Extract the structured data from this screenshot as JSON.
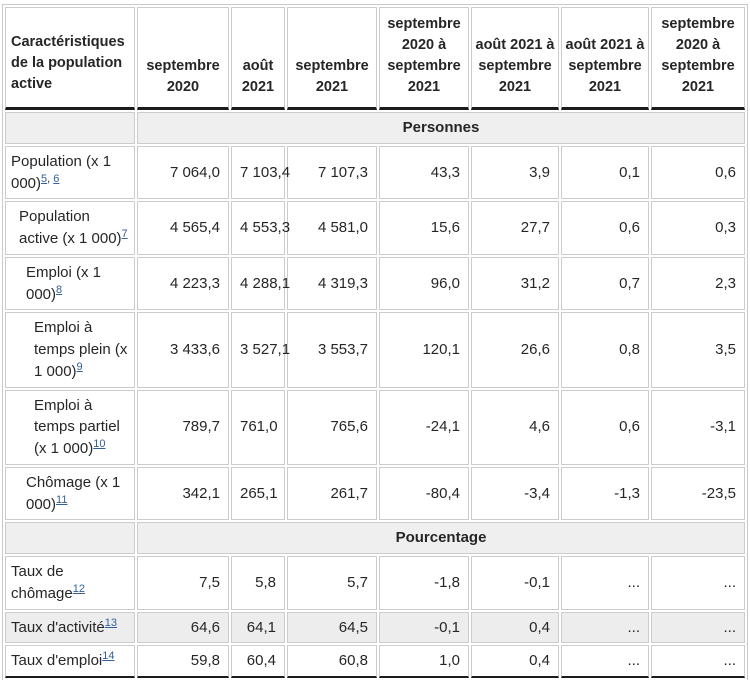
{
  "table": {
    "header": {
      "label_col": "Caractéristiques de la population active",
      "columns": [
        "septembre 2020",
        "août 2021",
        "septembre 2021",
        "septembre 2020 à septembre 2021",
        "août 2021 à septembre 2021",
        "août 2021 à septembre 2021",
        "septembre 2020 à septembre 2021"
      ]
    },
    "sections": [
      {
        "band": "Personnes",
        "rows": [
          {
            "label": "Population (x 1 000)",
            "footnotes": [
              "5",
              "6"
            ],
            "indent": 0,
            "highlighted": false,
            "values": [
              "7 064,0",
              "7 103,4",
              "7 107,3",
              "43,3",
              "3,9",
              "0,1",
              "0,6"
            ]
          },
          {
            "label": "Population active (x 1 000)",
            "footnotes": [
              "7"
            ],
            "indent": 1,
            "highlighted": false,
            "values": [
              "4 565,4",
              "4 553,3",
              "4 581,0",
              "15,6",
              "27,7",
              "0,6",
              "0,3"
            ]
          },
          {
            "label": "Emploi (x 1 000)",
            "footnotes": [
              "8"
            ],
            "indent": 2,
            "highlighted": false,
            "values": [
              "4 223,3",
              "4 288,1",
              "4 319,3",
              "96,0",
              "31,2",
              "0,7",
              "2,3"
            ]
          },
          {
            "label": "Emploi à temps plein (x 1 000)",
            "footnotes": [
              "9"
            ],
            "indent": 3,
            "highlighted": false,
            "values": [
              "3 433,6",
              "3 527,1",
              "3 553,7",
              "120,1",
              "26,6",
              "0,8",
              "3,5"
            ]
          },
          {
            "label": "Emploi à temps partiel (x 1 000)",
            "footnotes": [
              "10"
            ],
            "indent": 3,
            "highlighted": false,
            "values": [
              "789,7",
              "761,0",
              "765,6",
              "-24,1",
              "4,6",
              "0,6",
              "-3,1"
            ]
          },
          {
            "label": "Chômage (x 1 000)",
            "footnotes": [
              "11"
            ],
            "indent": 2,
            "highlighted": false,
            "values": [
              "342,1",
              "265,1",
              "261,7",
              "-80,4",
              "-3,4",
              "-1,3",
              "-23,5"
            ]
          }
        ]
      },
      {
        "band": "Pourcentage",
        "rows": [
          {
            "label": "Taux de chômage",
            "footnotes": [
              "12"
            ],
            "indent": 0,
            "highlighted": false,
            "values": [
              "7,5",
              "5,8",
              "5,7",
              "-1,8",
              "-0,1",
              "...",
              "..."
            ]
          },
          {
            "label": "Taux d'activité",
            "footnotes": [
              "13"
            ],
            "indent": 0,
            "highlighted": true,
            "values": [
              "64,6",
              "64,1",
              "64,5",
              "-0,1",
              "0,4",
              "...",
              "..."
            ]
          },
          {
            "label": "Taux d'emploi",
            "footnotes": [
              "14"
            ],
            "indent": 0,
            "highlighted": false,
            "values": [
              "59,8",
              "60,4",
              "60,8",
              "1,0",
              "0,4",
              "...",
              "..."
            ]
          }
        ]
      }
    ],
    "footnote_separator": ", "
  },
  "colors": {
    "link_blue": "#31609c",
    "band_background": "#efefef",
    "highlight_row_background": "#ededed",
    "cell_border_gray": "#cccccc",
    "heavy_rule_dark": "#1b1b1b"
  }
}
